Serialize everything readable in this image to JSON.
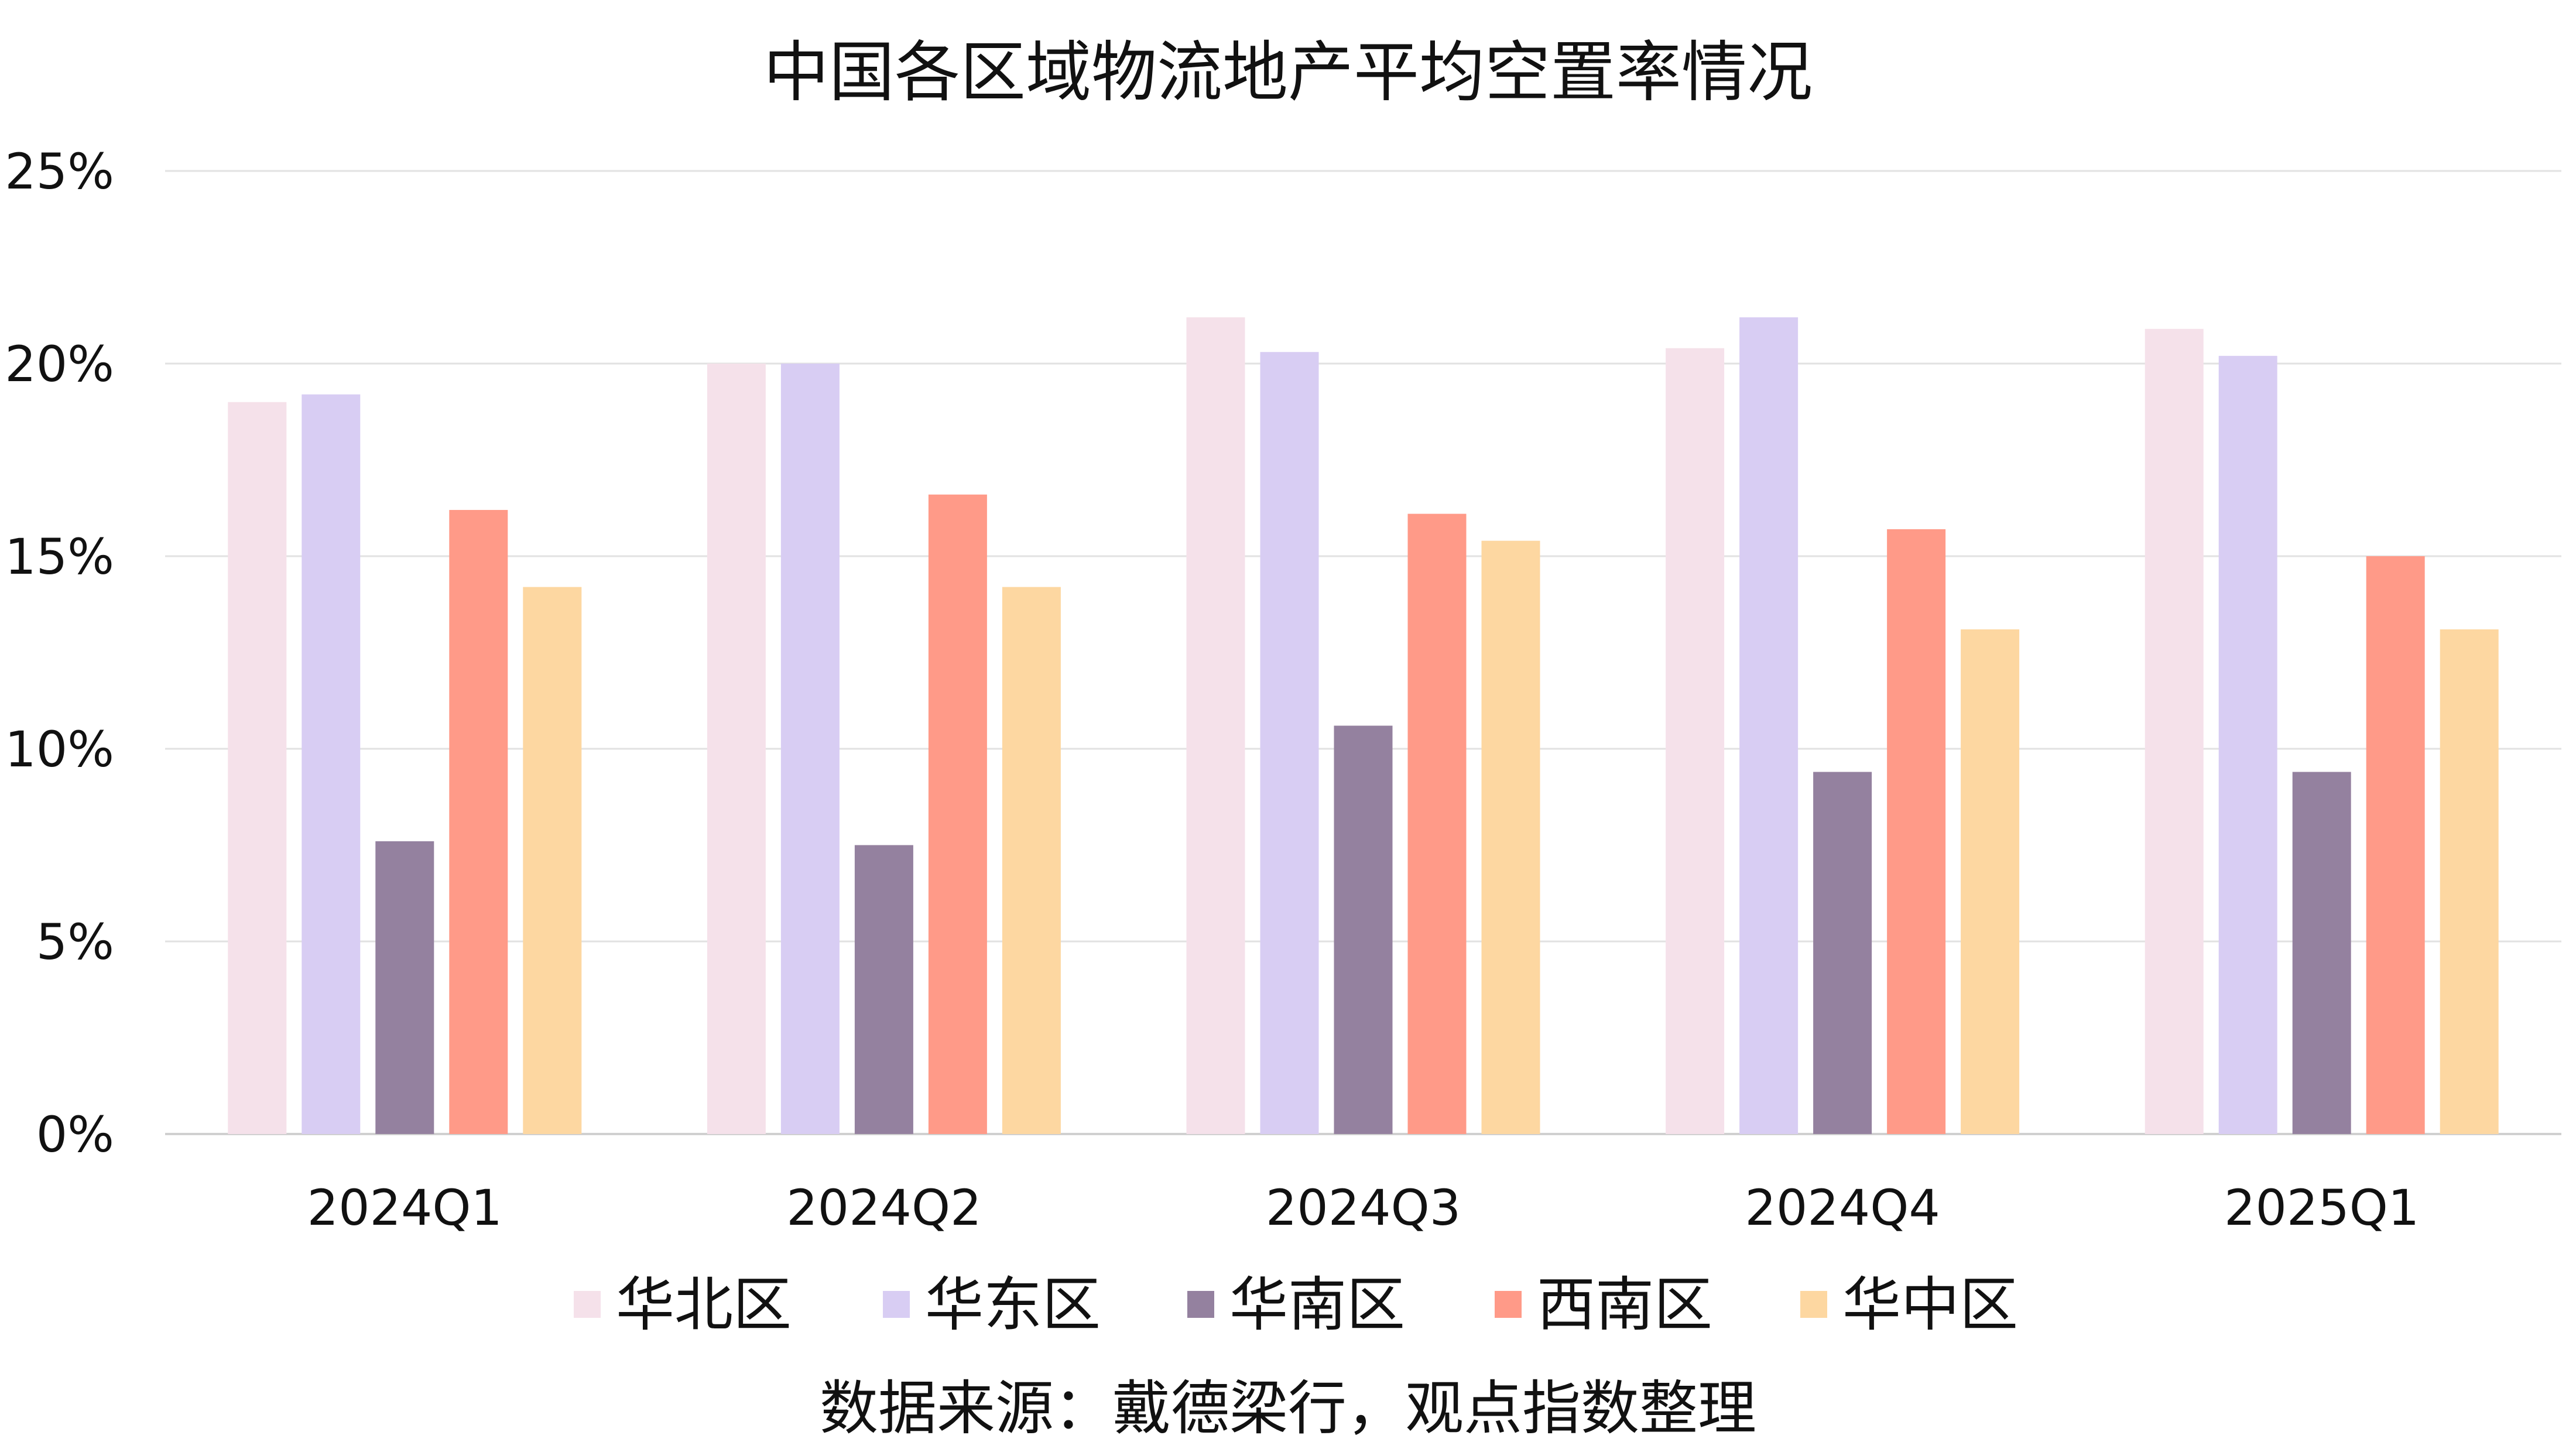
{
  "chart_data": {
    "type": "bar",
    "title": "中国各区域物流地产平均空置率情况",
    "categories": [
      "2024Q1",
      "2024Q2",
      "2024Q3",
      "2024Q4",
      "2025Q1"
    ],
    "series": [
      {
        "name": "华北区",
        "color": "#F5E1EA",
        "values": [
          19.0,
          20.0,
          21.2,
          20.4,
          20.9
        ]
      },
      {
        "name": "华东区",
        "color": "#D8CDF3",
        "values": [
          19.2,
          20.0,
          20.3,
          21.2,
          20.2
        ]
      },
      {
        "name": "华南区",
        "color": "#94819F",
        "values": [
          7.6,
          7.5,
          10.6,
          9.4,
          9.4
        ]
      },
      {
        "name": "西南区",
        "color": "#FF9A88",
        "values": [
          16.2,
          16.6,
          16.1,
          15.7,
          15.0
        ]
      },
      {
        "name": "华中区",
        "color": "#FDD7A1",
        "values": [
          14.2,
          14.2,
          15.4,
          13.1,
          13.1
        ]
      }
    ],
    "ylim": [
      0,
      25
    ],
    "yticks": [
      "0%",
      "5%",
      "10%",
      "15%",
      "20%",
      "25%"
    ],
    "ytick_values": [
      0,
      5,
      10,
      15,
      20,
      25
    ],
    "grid": true,
    "legend_position": "bottom",
    "source_note": "数据来源：戴德梁行，观点指数整理"
  }
}
